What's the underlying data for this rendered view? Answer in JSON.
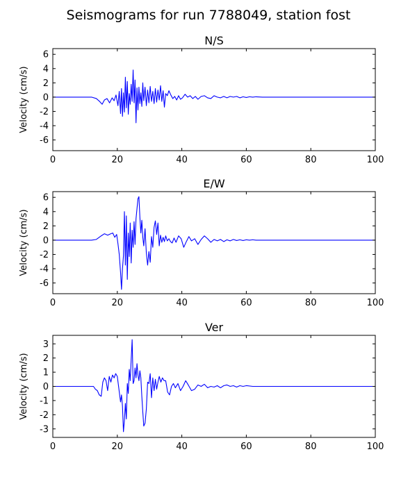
{
  "figure": {
    "title": "Seismograms for run 7788049, station fost"
  },
  "chart_data": [
    {
      "type": "line",
      "title": "N/S",
      "xlabel": "",
      "ylabel": "Velocity (cm/s)",
      "xlim": [
        0,
        100
      ],
      "ylim": [
        -7.5,
        6.8
      ],
      "xticks": [
        0,
        20,
        40,
        60,
        80,
        100
      ],
      "yticks": [
        -6,
        -4,
        -2,
        0,
        2,
        4,
        6
      ],
      "grid": false,
      "line_color": "#0000ff",
      "series": [
        {
          "x": [
            0,
            12,
            13.5,
            14.5,
            15.3,
            16,
            16.8,
            17.6,
            18.4,
            19,
            19.6,
            20.2,
            20.6,
            21,
            21.3,
            21.6,
            21.9,
            22.2,
            22.5,
            22.8,
            23.1,
            23.4,
            23.7,
            24,
            24.3,
            24.6,
            24.9,
            25.2,
            25.5,
            25.8,
            26.1,
            26.4,
            26.7,
            27,
            27.3,
            27.6,
            27.9,
            28.2,
            28.6,
            29,
            29.4,
            29.8,
            30.2,
            30.6,
            31,
            31.4,
            31.8,
            32.2,
            32.6,
            33,
            33.4,
            33.8,
            34.2,
            34.6,
            35,
            35.5,
            36,
            36.6,
            37.2,
            37.8,
            38.4,
            39,
            39.6,
            40.2,
            41,
            41.8,
            42.6,
            43.4,
            44.2,
            45,
            46,
            47,
            48,
            49,
            50,
            51,
            52,
            53,
            54,
            55,
            56,
            57,
            58,
            59,
            60,
            61,
            62,
            63,
            65,
            100
          ],
          "y": [
            0,
            0,
            -0.2,
            -0.6,
            -1.0,
            -0.4,
            -0.2,
            -0.8,
            -0.1,
            -0.5,
            0.3,
            -1.2,
            0.8,
            -2.3,
            1.2,
            -2.7,
            0.6,
            -2.1,
            2.8,
            -1.5,
            2.2,
            -2.4,
            0.5,
            -1.0,
            1.8,
            -0.6,
            3.8,
            -0.8,
            2.4,
            -3.6,
            1.3,
            -1.8,
            1.4,
            -0.9,
            0.6,
            -1.3,
            2.0,
            -0.5,
            1.4,
            -1.2,
            1.0,
            -0.8,
            1.5,
            -0.6,
            0.8,
            -0.9,
            1.2,
            -0.7,
            1.0,
            -0.4,
            1.6,
            -0.6,
            0.9,
            -1.4,
            0.5,
            0.2,
            0.9,
            0.3,
            -0.2,
            0.1,
            -0.4,
            0.2,
            -0.3,
            -0.1,
            0.4,
            0.0,
            0.2,
            -0.2,
            0.1,
            -0.3,
            0.1,
            0.2,
            -0.1,
            -0.2,
            0.2,
            0.0,
            -0.1,
            0.1,
            -0.1,
            0.1,
            0.0,
            0.1,
            -0.1,
            0.05,
            -0.05,
            0.05,
            0.0,
            0.05,
            0,
            0
          ]
        }
      ]
    },
    {
      "type": "line",
      "title": "E/W",
      "xlabel": "",
      "ylabel": "Velocity (cm/s)",
      "xlim": [
        0,
        100
      ],
      "ylim": [
        -7.5,
        6.8
      ],
      "xticks": [
        0,
        20,
        40,
        60,
        80,
        100
      ],
      "yticks": [
        -6,
        -4,
        -2,
        0,
        2,
        4,
        6
      ],
      "grid": false,
      "line_color": "#0000ff",
      "series": [
        {
          "x": [
            0,
            12,
            13.5,
            15,
            16,
            17,
            18,
            18.6,
            19.2,
            19.8,
            20.2,
            20.6,
            21,
            21.3,
            21.6,
            21.9,
            22.2,
            22.5,
            22.8,
            23.1,
            23.4,
            23.7,
            24,
            24.3,
            24.6,
            24.9,
            25.2,
            25.5,
            25.8,
            26.1,
            26.4,
            26.7,
            27,
            27.3,
            27.6,
            27.9,
            28.2,
            28.6,
            29,
            29.4,
            29.8,
            30.2,
            30.6,
            31,
            31.4,
            31.8,
            32.2,
            32.6,
            33,
            33.4,
            33.8,
            34.2,
            34.6,
            35,
            35.5,
            36,
            36.5,
            37,
            37.6,
            38.2,
            39,
            39.8,
            40.6,
            41.4,
            42.2,
            43,
            44,
            45,
            46,
            47,
            48,
            49,
            50,
            51,
            52,
            53,
            54,
            55,
            56,
            57,
            58,
            59,
            60,
            61,
            62,
            63,
            65,
            100
          ],
          "y": [
            0,
            0,
            0.1,
            0.6,
            0.9,
            0.7,
            0.9,
            1.0,
            0.4,
            0.8,
            -0.5,
            -2.0,
            -4.5,
            -6.9,
            -4.0,
            -2.2,
            4.0,
            -3.5,
            3.4,
            -5.5,
            1.0,
            -2.3,
            2.4,
            -3.2,
            1.4,
            -1.0,
            2.6,
            -0.6,
            3.0,
            4.4,
            5.8,
            6.1,
            3.2,
            1.0,
            2.8,
            0.4,
            -0.8,
            1.6,
            -1.8,
            -3.5,
            -1.6,
            -3.1,
            0.5,
            -1.0,
            1.8,
            2.7,
            0.8,
            2.4,
            -0.8,
            0.7,
            -0.3,
            0.4,
            -0.2,
            0.6,
            -0.1,
            0.2,
            -0.2,
            -0.4,
            0.3,
            -0.3,
            0.6,
            0.2,
            -1.0,
            -0.2,
            0.5,
            -0.1,
            0.2,
            -0.6,
            0.1,
            0.6,
            0.2,
            -0.3,
            0.1,
            -0.1,
            0.1,
            -0.2,
            0.05,
            -0.1,
            0.1,
            -0.05,
            0.05,
            -0.05,
            0.05,
            0.0,
            0.05,
            0.0,
            0,
            0
          ]
        }
      ]
    },
    {
      "type": "line",
      "title": "Ver",
      "xlabel": "",
      "ylabel": "Velocity (cm/s)",
      "xlim": [
        0,
        100
      ],
      "ylim": [
        -3.6,
        3.6
      ],
      "xticks": [
        0,
        20,
        40,
        60,
        80,
        100
      ],
      "yticks": [
        -3,
        -2,
        -1,
        0,
        1,
        2,
        3
      ],
      "grid": false,
      "line_color": "#0000ff",
      "series": [
        {
          "x": [
            0,
            12,
            12.6,
            13.2,
            13.8,
            14.4,
            15,
            15.5,
            16,
            16.5,
            17,
            17.5,
            18,
            18.5,
            19,
            19.5,
            20,
            20.5,
            21,
            21.3,
            21.6,
            21.9,
            22.2,
            22.5,
            22.8,
            23.1,
            23.4,
            23.7,
            24,
            24.3,
            24.6,
            24.9,
            25.2,
            25.5,
            25.8,
            26.1,
            26.4,
            26.7,
            27,
            27.3,
            27.6,
            27.9,
            28.2,
            28.6,
            29,
            29.4,
            29.8,
            30.2,
            30.6,
            31,
            31.4,
            31.8,
            32.2,
            32.6,
            33,
            33.5,
            34,
            34.5,
            35,
            35.6,
            36.2,
            36.8,
            37.4,
            38,
            38.8,
            39.6,
            40.4,
            41.2,
            42,
            43,
            44,
            45,
            46,
            47,
            48,
            49,
            50,
            51,
            52,
            53,
            54,
            55,
            56,
            57,
            58,
            59,
            60,
            62,
            100
          ],
          "y": [
            0,
            0,
            0.0,
            -0.2,
            -0.3,
            -0.6,
            -0.7,
            0.3,
            0.6,
            0.4,
            -0.3,
            0.7,
            0.3,
            0.8,
            0.6,
            0.9,
            0.7,
            -0.2,
            -1.1,
            -0.6,
            -1.4,
            -3.2,
            -2.4,
            -1.2,
            -2.3,
            0.2,
            -0.5,
            1.2,
            0.4,
            1.9,
            3.3,
            0.2,
            0.4,
            1.3,
            0.6,
            1.6,
            0.8,
            0.4,
            1.1,
            0.6,
            -0.7,
            -1.8,
            -2.8,
            -2.6,
            -1.6,
            0.3,
            0.2,
            0.9,
            -0.8,
            0.6,
            -0.3,
            0.5,
            -0.2,
            0.3,
            0.7,
            0.3,
            0.6,
            0.4,
            0.4,
            -0.4,
            -0.6,
            0.0,
            0.2,
            -0.1,
            0.2,
            -0.3,
            0.0,
            0.4,
            0.1,
            -0.3,
            -0.2,
            0.1,
            0.0,
            0.15,
            -0.1,
            0.0,
            -0.05,
            0.05,
            -0.1,
            0.05,
            0.1,
            0.0,
            0.05,
            -0.05,
            0.05,
            0.0,
            0.05,
            0,
            0
          ]
        }
      ]
    }
  ]
}
